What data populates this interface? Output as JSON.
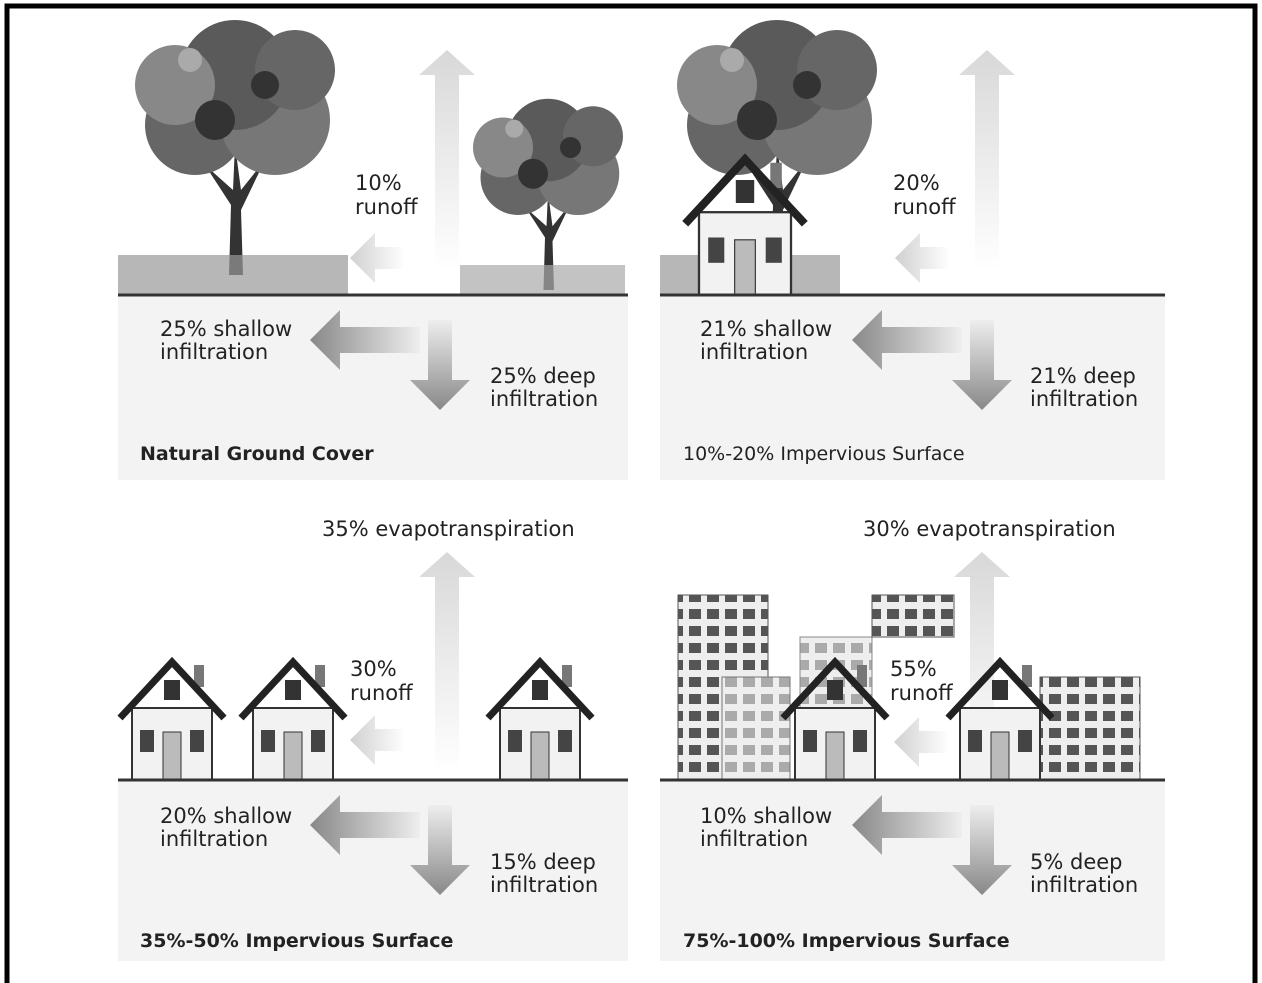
{
  "panels": [
    {
      "title": "Natural Ground Cover",
      "runoff": [
        "10%",
        "runoff"
      ],
      "shallow": [
        "25% shallow",
        "infiltration"
      ],
      "deep": [
        "25% deep",
        "infiltration"
      ]
    },
    {
      "title": "10%-20% Impervious Surface",
      "runoff": [
        "20%",
        "runoff"
      ],
      "shallow": [
        "21% shallow",
        "infiltration"
      ],
      "deep": [
        "21% deep",
        "infiltration"
      ]
    },
    {
      "title": "35%-50% Impervious Surface",
      "evapotranspiration": "35% evapotranspiration",
      "runoff": [
        "30%",
        "runoff"
      ],
      "shallow": [
        "20% shallow",
        "infiltration"
      ],
      "deep": [
        "15% deep",
        "infiltration"
      ]
    },
    {
      "title": "75%-100% Impervious Surface",
      "evapotranspiration": "30% evapotranspiration",
      "runoff": [
        "55%",
        "runoff"
      ],
      "shallow": [
        "10% shallow",
        "infiltration"
      ],
      "deep": [
        "5% deep",
        "infiltration"
      ]
    }
  ]
}
